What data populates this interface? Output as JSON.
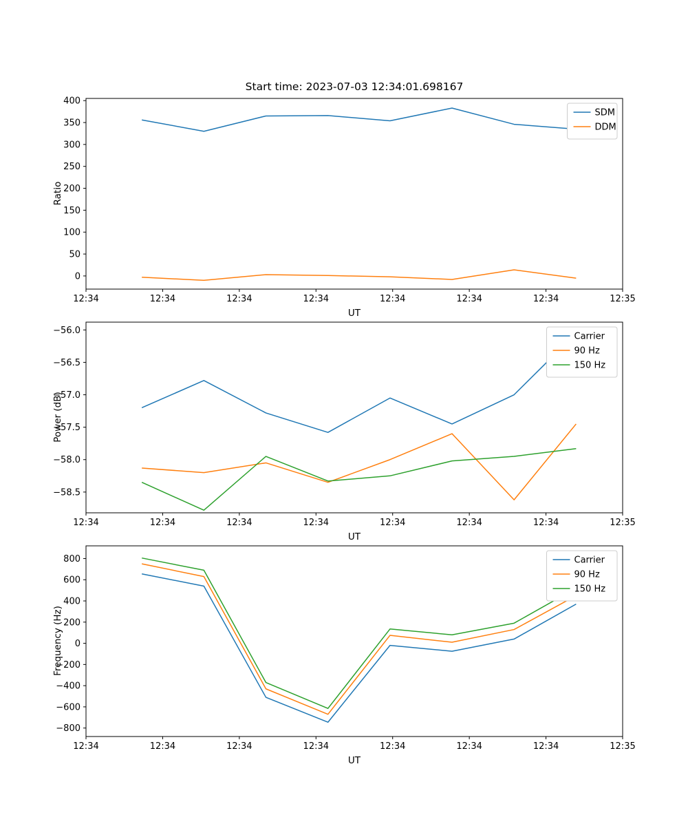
{
  "figure": {
    "background": "#ffffff",
    "axis_color": "#000000",
    "legend_border": "#cccccc"
  },
  "chart_data": [
    {
      "type": "line",
      "title": "Start time: 2023-07-03 12:34:01.698167",
      "xlabel": "UT",
      "ylabel": "Ratio",
      "grid": false,
      "legend_position": "top-right",
      "xticks": [
        "12:34",
        "12:34",
        "12:34",
        "12:34",
        "12:34",
        "12:34",
        "12:34",
        "12:35"
      ],
      "yticks": [
        0,
        50,
        100,
        150,
        200,
        250,
        300,
        350,
        400
      ],
      "ytick_labels": [
        "0",
        "50",
        "100",
        "150",
        "200",
        "250",
        "300",
        "350",
        "400"
      ],
      "ylim": [
        -30,
        405
      ],
      "x": [
        1,
        2,
        3,
        4,
        5,
        6,
        7,
        8
      ],
      "xlim": [
        0.1,
        8.75
      ],
      "series": [
        {
          "name": "SDM",
          "color": "#1f77b4",
          "values": [
            356,
            330,
            365,
            366,
            354,
            383,
            346,
            335
          ]
        },
        {
          "name": "DDM",
          "color": "#ff7f0e",
          "values": [
            -3,
            -10,
            3,
            1,
            -2,
            -8,
            14,
            -5
          ]
        }
      ]
    },
    {
      "type": "line",
      "title": "",
      "xlabel": "UT",
      "ylabel": "Power (dB)",
      "grid": false,
      "legend_position": "top-right",
      "xticks": [
        "12:34",
        "12:34",
        "12:34",
        "12:34",
        "12:34",
        "12:34",
        "12:34",
        "12:35"
      ],
      "yticks": [
        -56.0,
        -56.5,
        -57.0,
        -57.5,
        -58.0,
        -58.5
      ],
      "ytick_labels": [
        "−56.0",
        "−56.5",
        "−57.0",
        "−57.5",
        "−58.0",
        "−58.5"
      ],
      "ylim": [
        -58.82,
        -55.88
      ],
      "x": [
        1,
        2,
        3,
        4,
        5,
        6,
        7,
        8
      ],
      "xlim": [
        0.1,
        8.75
      ],
      "series": [
        {
          "name": "Carrier",
          "color": "#1f77b4",
          "values": [
            -57.2,
            -56.78,
            -57.28,
            -57.58,
            -57.05,
            -57.45,
            -57.0,
            -56.05
          ]
        },
        {
          "name": "90 Hz",
          "color": "#ff7f0e",
          "values": [
            -58.13,
            -58.2,
            -58.05,
            -58.35,
            -58.0,
            -57.6,
            -58.62,
            -57.45
          ]
        },
        {
          "name": "150 Hz",
          "color": "#2ca02c",
          "values": [
            -58.35,
            -58.78,
            -57.95,
            -58.33,
            -58.25,
            -58.02,
            -57.95,
            -57.83
          ]
        }
      ]
    },
    {
      "type": "line",
      "title": "",
      "xlabel": "UT",
      "ylabel": "Frequency (Hz)",
      "grid": false,
      "legend_position": "top-right",
      "xticks": [
        "12:34",
        "12:34",
        "12:34",
        "12:34",
        "12:34",
        "12:34",
        "12:34",
        "12:35"
      ],
      "yticks": [
        -800,
        -600,
        -400,
        -200,
        0,
        200,
        400,
        600,
        800
      ],
      "ytick_labels": [
        "−800",
        "−600",
        "−400",
        "−200",
        "0",
        "200",
        "400",
        "600",
        "800"
      ],
      "ylim": [
        -880,
        920
      ],
      "x": [
        1,
        2,
        3,
        4,
        5,
        6,
        7,
        8
      ],
      "xlim": [
        0.1,
        8.75
      ],
      "series": [
        {
          "name": "Carrier",
          "color": "#1f77b4",
          "values": [
            655,
            540,
            -510,
            -745,
            -20,
            -75,
            40,
            370
          ]
        },
        {
          "name": "90 Hz",
          "color": "#ff7f0e",
          "values": [
            750,
            630,
            -430,
            -670,
            75,
            10,
            130,
            450
          ]
        },
        {
          "name": "150 Hz",
          "color": "#2ca02c",
          "values": [
            805,
            690,
            -370,
            -615,
            135,
            80,
            190,
            520
          ]
        }
      ]
    }
  ]
}
